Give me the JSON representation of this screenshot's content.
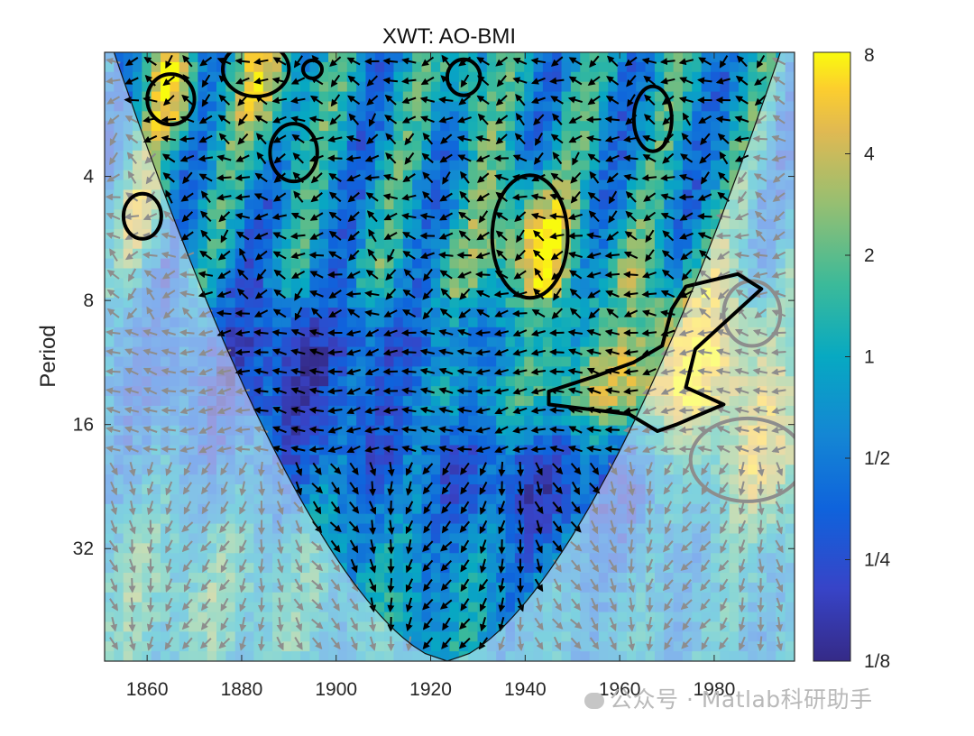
{
  "chart_data": {
    "type": "heatmap",
    "title": "XWT: AO-BMI",
    "xlabel": "",
    "ylabel": "Period",
    "x_ticks": [
      "1860",
      "1880",
      "1900",
      "1920",
      "1940",
      "1960",
      "1980"
    ],
    "x_tick_values": [
      1860,
      1880,
      1900,
      1920,
      1940,
      1960,
      1980
    ],
    "y_ticks": [
      "4",
      "8",
      "16",
      "32"
    ],
    "y_tick_values": [
      4,
      8,
      16,
      32
    ],
    "xlim": [
      1851,
      1997
    ],
    "ylim_period": [
      2,
      60
    ],
    "y_scale": "log2",
    "colorbar_ticks": [
      "8",
      "4",
      "2",
      "1",
      "1/2",
      "1/4",
      "1/8"
    ],
    "colorbar_values": [
      8,
      4,
      2,
      1,
      0.5,
      0.25,
      0.125
    ],
    "colormap": "parula",
    "colorbar_colors": [
      "#352a87",
      "#0363e1",
      "#1485d4",
      "#06a7c6",
      "#38b99e",
      "#92bf73",
      "#d9ba56",
      "#fcce2e",
      "#f9fb0e"
    ],
    "cone_of_influence": true,
    "significance_regions": [
      {
        "x_center": 1865,
        "period": 2.6
      },
      {
        "x_center": 1884,
        "period": 2.2
      },
      {
        "x_center": 1890,
        "period": 3.4
      },
      {
        "x_center": 1895,
        "period": 2.2
      },
      {
        "x_center": 1927,
        "period": 2.3
      },
      {
        "x_center": 1967,
        "period": 3.0
      },
      {
        "x_center": 1859,
        "period": 5.0
      },
      {
        "x_center": 1941,
        "period": 5.6
      },
      {
        "x_center": 1965,
        "period": 12.5
      },
      {
        "x_center": 1990,
        "period": 19.0
      }
    ],
    "phase_arrows": true,
    "grid": false
  },
  "watermark": "公众号 · Matlab科研助手",
  "watermark_icon": "wechat-icon"
}
